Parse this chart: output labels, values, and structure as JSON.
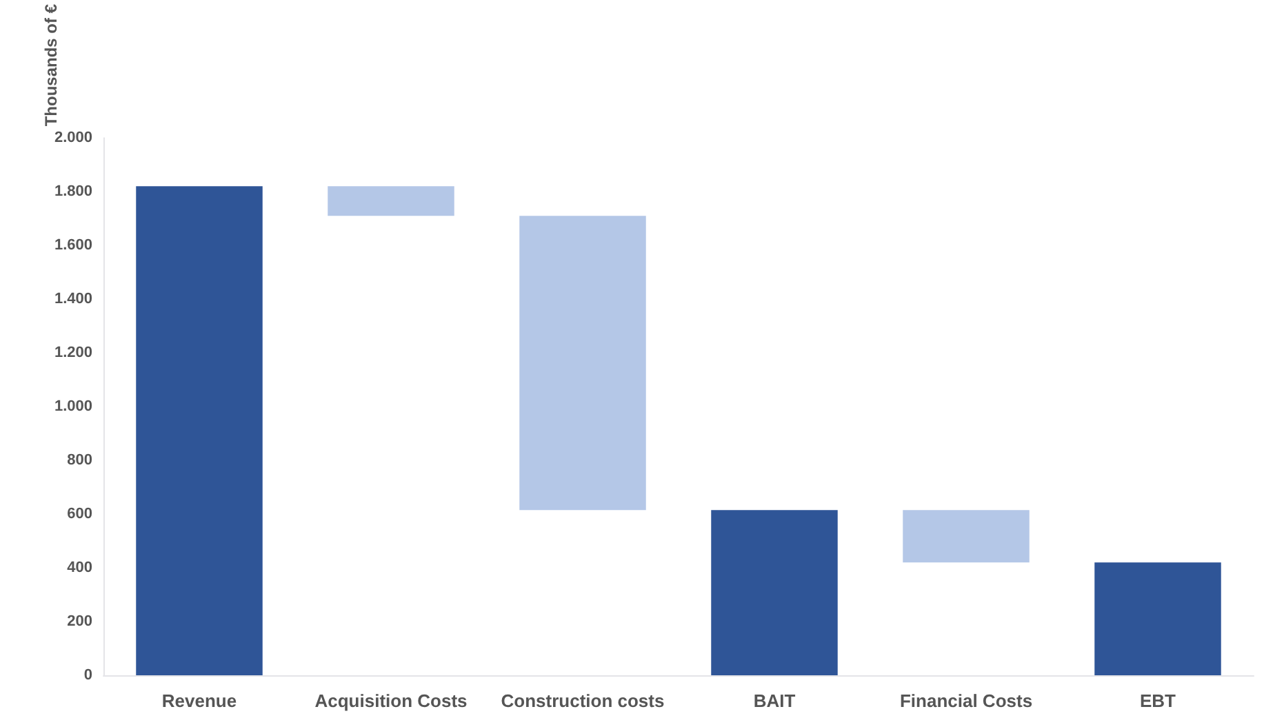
{
  "chart_data": {
    "type": "bar",
    "ylabel": "Thousands of €",
    "categories": [
      "Revenue",
      "Acquisition Costs",
      "Construction costs",
      "BAIT",
      "Financial Costs",
      "EBT"
    ],
    "values": [
      1820,
      110,
      1095,
      615,
      195,
      420
    ],
    "base": [
      0,
      1710,
      615,
      0,
      420,
      0
    ],
    "colors": [
      "#2f5597",
      "#b4c7e7",
      "#b4c7e7",
      "#2f5597",
      "#b4c7e7",
      "#2f5597"
    ],
    "ylim": [
      0,
      2000
    ],
    "yticks": [
      0,
      200,
      400,
      600,
      800,
      {
        "value": 1000,
        "label": "1.000"
      },
      {
        "value": 1200,
        "label": "1.200"
      },
      {
        "value": 1400,
        "label": "1.400"
      },
      {
        "value": 1600,
        "label": "1.600"
      },
      {
        "value": 1800,
        "label": "1.800"
      },
      {
        "value": 2000,
        "label": "2.000"
      }
    ],
    "grid": false
  }
}
